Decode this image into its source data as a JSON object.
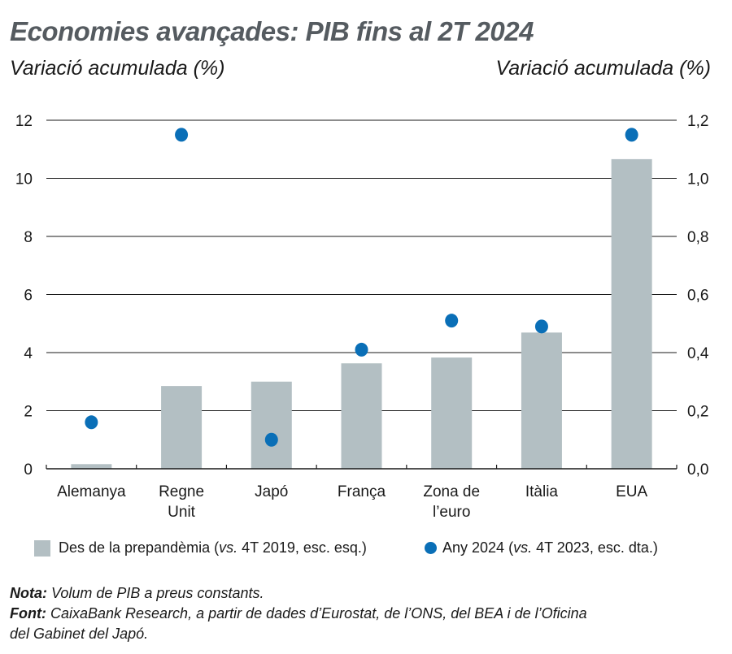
{
  "chart_data": {
    "type": "bar",
    "title": "Economies avançades: PIB fins al 2T 2024",
    "ylabel_left": "Variació acumulada (%)",
    "ylabel_right": "Variació acumulada (%)",
    "categories": [
      "Alemanya",
      "Regne Unit",
      "Japó",
      "França",
      "Zona de l’euro",
      "Itàlia",
      "EUA"
    ],
    "category_lines": [
      [
        "Alemanya"
      ],
      [
        "Regne",
        "Unit"
      ],
      [
        "Japó"
      ],
      [
        "França"
      ],
      [
        "Zona de",
        "l’euro"
      ],
      [
        "Itàlia"
      ],
      [
        "EUA"
      ]
    ],
    "series": [
      {
        "name": "Des de la prepandèmia",
        "name_italic": "vs.",
        "name_suffix": "4T 2019, esc. esq.)",
        "type": "bar",
        "axis": "left",
        "color": "#b3bfc3",
        "values": [
          0.16,
          2.85,
          3.0,
          3.63,
          3.83,
          4.69,
          10.66
        ]
      },
      {
        "name": "Any 2024",
        "name_italic": "vs.",
        "name_suffix": "4T 2023, esc. dta.)",
        "type": "scatter",
        "axis": "right",
        "color": "#0a6fb7",
        "values": [
          0.16,
          1.15,
          0.1,
          0.41,
          0.51,
          0.49,
          1.15
        ]
      }
    ],
    "ylim_left": [
      0,
      12
    ],
    "yticks_left": [
      "0",
      "2",
      "4",
      "6",
      "8",
      "10",
      "12"
    ],
    "ylim_right": [
      0,
      1.2
    ],
    "yticks_right": [
      "0,0",
      "0,2",
      "0,4",
      "0,6",
      "0,8",
      "1,0",
      "1,2"
    ],
    "grid": true,
    "legend_position": "bottom"
  },
  "notes": {
    "nota_label": "Nota:",
    "nota_text": " Volum de PIB a preus constants.",
    "font_label": "Font:",
    "font_text": " CaixaBank Research, a partir de dades d’Eurostat, de l’ONS, del BEA i de l’Oficina",
    "font_text2": "del Gabinet del Japó."
  }
}
